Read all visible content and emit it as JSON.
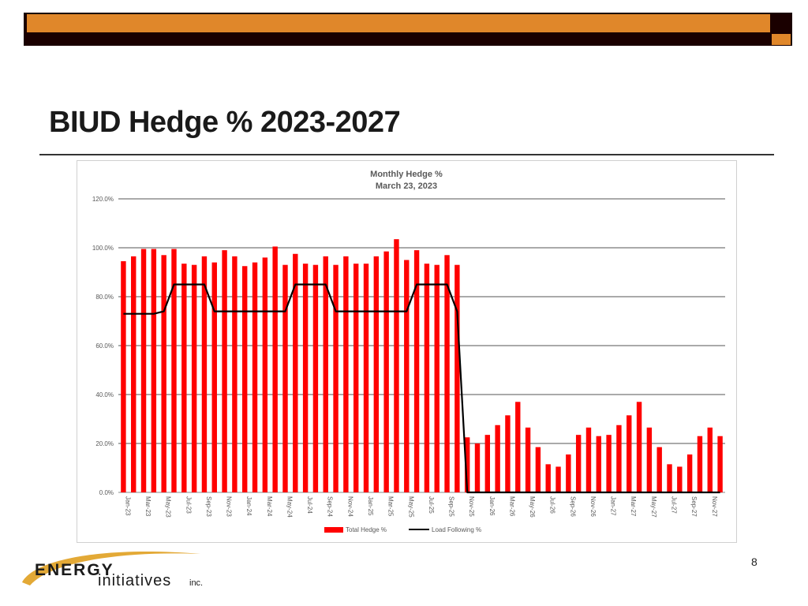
{
  "slide": {
    "title": "BIUD Hedge % 2023-2027",
    "page_number": "8",
    "logo_line1": "ENERGY",
    "logo_line2": "initiatives",
    "logo_suffix": "inc."
  },
  "colors": {
    "accent_orange": "#e0872a",
    "accent_dark": "#1a0000",
    "bar_red": "#ff0000",
    "line_black": "#000000"
  },
  "chart_data": {
    "type": "bar",
    "title": "Monthly Hedge %",
    "subtitle": "March 23, 2023",
    "ylim": [
      0,
      120
    ],
    "yticks": [
      "0.0%",
      "20.0%",
      "40.0%",
      "60.0%",
      "80.0%",
      "100.0%",
      "120.0%"
    ],
    "ytick_values": [
      0,
      20,
      40,
      60,
      80,
      100,
      120
    ],
    "grid": true,
    "legend_position": "bottom",
    "categories": [
      "Jan-23",
      "Feb-23",
      "Mar-23",
      "Apr-23",
      "May-23",
      "Jun-23",
      "Jul-23",
      "Aug-23",
      "Sep-23",
      "Oct-23",
      "Nov-23",
      "Dec-23",
      "Jan-24",
      "Feb-24",
      "Mar-24",
      "Apr-24",
      "May-24",
      "Jun-24",
      "Jul-24",
      "Aug-24",
      "Sep-24",
      "Oct-24",
      "Nov-24",
      "Dec-24",
      "Jan-25",
      "Feb-25",
      "Mar-25",
      "Apr-25",
      "May-25",
      "Jun-25",
      "Jul-25",
      "Aug-25",
      "Sep-25",
      "Oct-25",
      "Nov-25",
      "Dec-25",
      "Jan-26",
      "Feb-26",
      "Mar-26",
      "Apr-26",
      "May-26",
      "Jun-26",
      "Jul-26",
      "Aug-26",
      "Sep-26",
      "Oct-26",
      "Nov-26",
      "Dec-26",
      "Jan-27",
      "Feb-27",
      "Mar-27",
      "Apr-27",
      "May-27",
      "Jun-27",
      "Jul-27",
      "Aug-27",
      "Sep-27",
      "Oct-27",
      "Nov-27",
      "Dec-27"
    ],
    "x_tick_labels": [
      "Jan-23",
      "Mar-23",
      "May-23",
      "Jul-23",
      "Sep-23",
      "Nov-23",
      "Jan-24",
      "Mar-24",
      "May-24",
      "Jul-24",
      "Sep-24",
      "Nov-24",
      "Jan-25",
      "Mar-25",
      "May-25",
      "Jul-25",
      "Sep-25",
      "Nov-25",
      "Jan-26",
      "Mar-26",
      "May-26",
      "Jul-26",
      "Sep-26",
      "Nov-26",
      "Jan-27",
      "Mar-27",
      "May-27",
      "Jul-27",
      "Sep-27",
      "Nov-27"
    ],
    "series": [
      {
        "name": "Total Hedge %",
        "kind": "bar",
        "color": "#ff0000",
        "values": [
          94.5,
          96.5,
          99.5,
          99.5,
          97.0,
          99.5,
          93.5,
          93.0,
          96.5,
          94.0,
          99.0,
          96.5,
          92.5,
          94.0,
          96.0,
          100.5,
          93.0,
          97.5,
          93.5,
          93.0,
          96.5,
          93.0,
          96.5,
          93.5,
          93.5,
          96.5,
          98.5,
          103.5,
          95.0,
          99.0,
          93.5,
          93.0,
          97.0,
          93.0,
          22.5,
          20.0,
          23.5,
          27.5,
          31.5,
          37.0,
          26.5,
          18.5,
          11.5,
          10.5,
          15.5,
          23.5,
          26.5,
          23.0,
          23.5,
          27.5,
          31.5,
          37.0,
          26.5,
          18.5,
          11.5,
          10.5,
          15.5,
          23.0,
          26.5,
          23.0
        ]
      },
      {
        "name": "Load Following %",
        "kind": "line",
        "color": "#000000",
        "values": [
          73,
          73,
          73,
          73,
          74,
          85,
          85,
          85,
          85,
          74,
          74,
          74,
          74,
          74,
          74,
          74,
          74,
          85,
          85,
          85,
          85,
          74,
          74,
          74,
          74,
          74,
          74,
          74,
          74,
          85,
          85,
          85,
          85,
          74,
          0,
          0,
          0,
          0,
          0,
          0,
          0,
          0,
          0,
          0,
          0,
          0,
          0,
          0,
          0,
          0,
          0,
          0,
          0,
          0,
          0,
          0,
          0,
          0,
          0,
          0
        ]
      }
    ]
  }
}
